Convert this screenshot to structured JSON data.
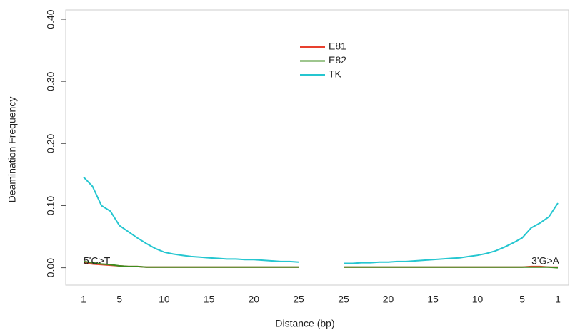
{
  "chart_data": {
    "type": "line",
    "x_label": "Distance (bp)",
    "y_label": "Deamination Frequency",
    "categories": [
      "1",
      null,
      null,
      null,
      "5",
      null,
      null,
      null,
      null,
      "10",
      null,
      null,
      null,
      null,
      "15",
      null,
      null,
      null,
      null,
      "20",
      null,
      null,
      null,
      null,
      "25",
      "25",
      null,
      null,
      null,
      null,
      "20",
      null,
      null,
      null,
      null,
      "15",
      null,
      null,
      null,
      null,
      "10",
      null,
      null,
      null,
      null,
      "5",
      null,
      null,
      null,
      "1"
    ],
    "series": [
      {
        "name": "E81",
        "color": "#e8402e",
        "values": [
          0.008,
          0.006,
          0.005,
          0.004,
          0.003,
          0.002,
          0.002,
          0.001,
          0.001,
          0.001,
          0.001,
          0.001,
          0.001,
          0.001,
          0.001,
          0.001,
          0.001,
          0.001,
          0.001,
          0.001,
          0.001,
          0.001,
          0.001,
          0.001,
          0.001,
          0.001,
          0.001,
          0.001,
          0.001,
          0.001,
          0.001,
          0.001,
          0.001,
          0.001,
          0.001,
          0.001,
          0.001,
          0.001,
          0.001,
          0.001,
          0.001,
          0.001,
          0.001,
          0.001,
          0.001,
          0.001,
          0.002,
          0.002,
          0.001,
          0.001
        ]
      },
      {
        "name": "E82",
        "color": "#3d8c1e",
        "values": [
          0.01,
          0.008,
          0.006,
          0.005,
          0.003,
          0.002,
          0.002,
          0.001,
          0.001,
          0.001,
          0.001,
          0.001,
          0.001,
          0.001,
          0.001,
          0.001,
          0.001,
          0.001,
          0.001,
          0.001,
          0.001,
          0.001,
          0.001,
          0.001,
          0.001,
          0.001,
          0.001,
          0.001,
          0.001,
          0.001,
          0.001,
          0.001,
          0.001,
          0.001,
          0.001,
          0.001,
          0.001,
          0.001,
          0.001,
          0.001,
          0.001,
          0.001,
          0.001,
          0.001,
          0.001,
          0.001,
          0.001,
          0.001,
          0.001,
          0.0
        ]
      },
      {
        "name": "TK",
        "color": "#25c6d0",
        "values": [
          0.146,
          0.131,
          0.1,
          0.091,
          0.068,
          0.058,
          0.048,
          0.039,
          0.031,
          0.025,
          0.022,
          0.02,
          0.018,
          0.017,
          0.016,
          0.015,
          0.014,
          0.014,
          0.013,
          0.013,
          0.012,
          0.011,
          0.01,
          0.01,
          0.009,
          0.007,
          0.007,
          0.008,
          0.008,
          0.009,
          0.009,
          0.01,
          0.01,
          0.011,
          0.012,
          0.013,
          0.014,
          0.015,
          0.016,
          0.018,
          0.02,
          0.023,
          0.027,
          0.033,
          0.04,
          0.048,
          0.064,
          0.072,
          0.082,
          0.104
        ]
      }
    ],
    "annotations": [
      "5'C>T",
      "3'G>A"
    ],
    "annotation_color": "#e8352a",
    "ylim": [
      -0.028,
      0.415
    ],
    "yticks": [
      {
        "value": 0,
        "label": "0.00"
      },
      {
        "value": 0.1,
        "label": "0.10"
      },
      {
        "value": 0.2,
        "label": "0.20"
      },
      {
        "value": 0.3,
        "label": "0.30"
      },
      {
        "value": 0.4,
        "label": "0.40"
      }
    ],
    "grid": false,
    "legend_position": "top"
  }
}
